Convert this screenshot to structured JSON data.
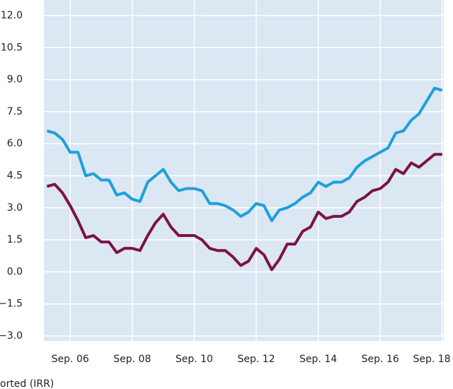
{
  "chart_data": {
    "type": "line",
    "note": "orted (IRR)",
    "x": [
      2006.0,
      2006.25,
      2006.5,
      2006.75,
      2007.0,
      2007.25,
      2007.5,
      2007.75,
      2008.0,
      2008.25,
      2008.5,
      2008.75,
      2009.0,
      2009.25,
      2009.5,
      2009.75,
      2010.0,
      2010.25,
      2010.5,
      2010.75,
      2011.0,
      2011.25,
      2011.5,
      2011.75,
      2012.0,
      2012.25,
      2012.5,
      2012.75,
      2013.0,
      2013.25,
      2013.5,
      2013.75,
      2014.0,
      2014.25,
      2014.5,
      2014.75,
      2015.0,
      2015.25,
      2015.5,
      2015.75,
      2016.0,
      2016.25,
      2016.5,
      2016.75,
      2017.0,
      2017.25,
      2017.5,
      2017.75,
      2018.0,
      2018.25,
      2018.5,
      2018.75
    ],
    "series": [
      {
        "color": "#1ea0dc",
        "values": [
          6.6,
          6.5,
          6.2,
          5.6,
          5.6,
          4.5,
          4.6,
          4.3,
          4.3,
          3.6,
          3.7,
          3.4,
          3.3,
          4.2,
          4.5,
          4.8,
          4.2,
          3.8,
          3.9,
          3.9,
          3.8,
          3.2,
          3.2,
          3.1,
          2.9,
          2.6,
          2.8,
          3.2,
          3.1,
          2.4,
          2.9,
          3.0,
          3.2,
          3.5,
          3.7,
          4.2,
          4.0,
          4.2,
          4.2,
          4.4,
          4.9,
          5.2,
          5.4,
          5.6,
          5.8,
          6.5,
          6.6,
          7.1,
          7.4,
          8.0,
          8.6,
          8.5
        ]
      },
      {
        "color": "#7b1346",
        "values": [
          4.0,
          4.1,
          3.7,
          3.1,
          2.4,
          1.6,
          1.7,
          1.4,
          1.4,
          0.9,
          1.1,
          1.1,
          1.0,
          1.7,
          2.3,
          2.7,
          2.1,
          1.7,
          1.7,
          1.7,
          1.5,
          1.1,
          1.0,
          1.0,
          0.7,
          0.3,
          0.5,
          1.1,
          0.8,
          0.1,
          0.6,
          1.3,
          1.3,
          1.9,
          2.1,
          2.8,
          2.5,
          2.6,
          2.6,
          2.8,
          3.3,
          3.5,
          3.8,
          3.9,
          4.2,
          4.8,
          4.6,
          5.1,
          4.9,
          5.2,
          5.5,
          5.5
        ]
      }
    ],
    "xlim": [
      2005.9,
      2018.8
    ],
    "xticks": [
      {
        "value": 2006.75,
        "label": "Sep. 06"
      },
      {
        "value": 2008.75,
        "label": "Sep. 08"
      },
      {
        "value": 2010.75,
        "label": "Sep. 10"
      },
      {
        "value": 2012.75,
        "label": "Sep. 12"
      },
      {
        "value": 2014.75,
        "label": "Sep. 14"
      },
      {
        "value": 2016.75,
        "label": "Sep. 16"
      },
      {
        "value": 2018.75,
        "label": "Sep. 18"
      }
    ],
    "ylim": [
      -3,
      12
    ],
    "yticks": [
      {
        "value": 12,
        "label": "12.0"
      },
      {
        "value": 10.5,
        "label": "10.5"
      },
      {
        "value": 9,
        "label": "9.0"
      },
      {
        "value": 7.5,
        "label": "7.5"
      },
      {
        "value": 6,
        "label": "6.0"
      },
      {
        "value": 4.5,
        "label": "4.5"
      },
      {
        "value": 3,
        "label": "3.0"
      },
      {
        "value": 1.5,
        "label": "1.5"
      },
      {
        "value": 0,
        "label": "0.0"
      },
      {
        "value": -1.5,
        "label": "−1.5"
      },
      {
        "value": -3,
        "label": "−3.0"
      }
    ],
    "grid": true
  }
}
